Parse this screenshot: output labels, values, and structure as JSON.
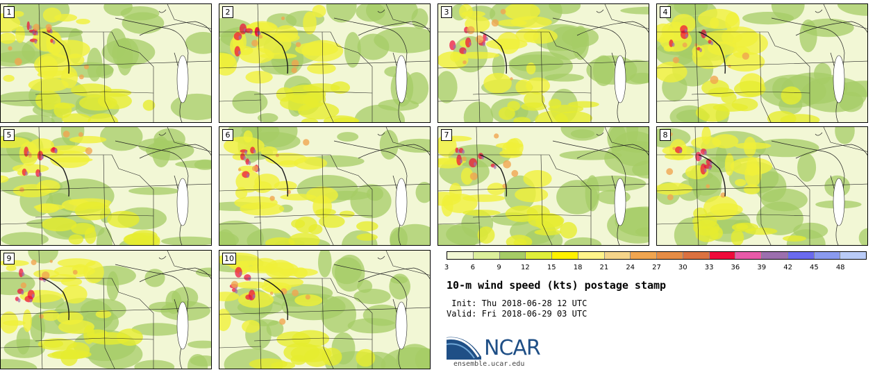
{
  "panels": [
    {
      "label": "1"
    },
    {
      "label": "2"
    },
    {
      "label": "3"
    },
    {
      "label": "4"
    },
    {
      "label": "5"
    },
    {
      "label": "6"
    },
    {
      "label": "7"
    },
    {
      "label": "8"
    },
    {
      "label": "9"
    },
    {
      "label": "10"
    }
  ],
  "legend": {
    "ticks": [
      "3",
      "6",
      "9",
      "12",
      "15",
      "18",
      "21",
      "24",
      "27",
      "30",
      "33",
      "36",
      "39",
      "42",
      "45",
      "48"
    ],
    "colors": [
      "#f2f7d5",
      "#dcef9c",
      "#a6cc66",
      "#e0ee3a",
      "#fff200",
      "#fff38a",
      "#f5d48a",
      "#f0a550",
      "#e68c45",
      "#db7140",
      "#ee0a3a",
      "#e85aa8",
      "#9c6fae",
      "#6a6aee",
      "#8a9af0",
      "#b9cbf8"
    ]
  },
  "title": "10-m wind speed (kts) postage stamp",
  "init": " Init: Thu 2018-06-28 12 UTC",
  "valid": "Valid: Fri 2018-06-29 03 UTC",
  "logo": {
    "text": "NCAR",
    "site": "ensemble.ucar.edu"
  }
}
